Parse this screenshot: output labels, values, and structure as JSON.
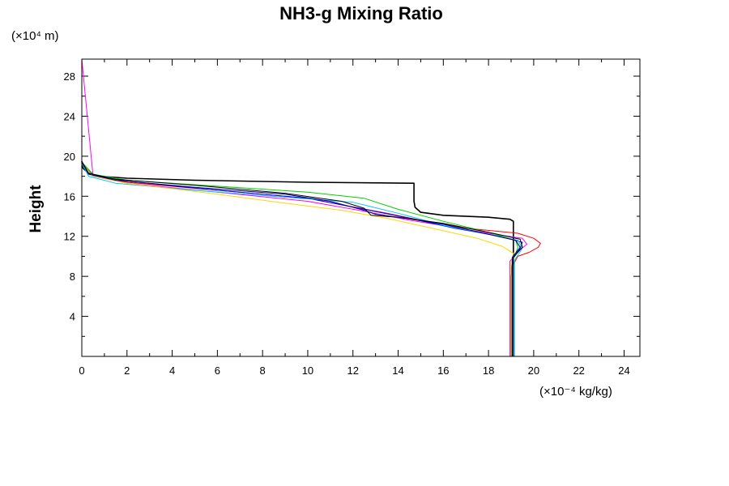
{
  "chart_data": {
    "type": "line",
    "title": "NH3-g Mixing Ratio",
    "ylabel": "Height",
    "y_units": "(×10⁴ m)",
    "x_units": "(×10⁻⁴ kg/kg)",
    "xlim": [
      0,
      24.7
    ],
    "ylim": [
      0,
      29.7
    ],
    "x_ticks": [
      0,
      2,
      4,
      6,
      8,
      10,
      12,
      14,
      16,
      18,
      20,
      22,
      24
    ],
    "y_ticks": [
      4,
      8,
      12,
      16,
      20,
      24,
      28
    ],
    "x_tick_labels": [
      "0",
      "2",
      "4",
      "6",
      "8",
      "10",
      "12",
      "14",
      "16",
      "18",
      "20",
      "22",
      "24"
    ],
    "y_tick_labels": [
      "4",
      "8",
      "12",
      "16",
      "20",
      "24",
      "28"
    ],
    "grid": false,
    "series": [
      {
        "name": "profile-black-bold",
        "color": "#000000",
        "width": 1.6,
        "x": [
          19.0,
          19.0,
          19.1,
          19.1,
          19.1,
          18.95,
          18.0,
          16.0,
          15.0,
          14.75,
          14.7,
          14.7,
          10.0,
          5.0,
          2.0,
          0.8,
          0.3,
          0.05,
          0.0
        ],
        "y": [
          0.0,
          8.0,
          10.0,
          11.5,
          13.5,
          13.7,
          13.9,
          14.1,
          14.4,
          14.9,
          15.5,
          17.3,
          17.4,
          17.6,
          17.8,
          18.0,
          18.3,
          18.8,
          19.5
        ]
      },
      {
        "name": "profile-red",
        "color": "#ff0000",
        "width": 1.0,
        "x": [
          19.05,
          19.05,
          19.3,
          19.8,
          20.2,
          20.3,
          20.0,
          19.3,
          17.0,
          15.0,
          13.5,
          10.0,
          6.0,
          2.0,
          0.5,
          0.0
        ],
        "y": [
          0.0,
          9.0,
          10.0,
          10.4,
          10.9,
          11.3,
          11.8,
          12.3,
          12.8,
          13.6,
          14.3,
          15.8,
          16.6,
          17.4,
          18.0,
          19.3
        ]
      },
      {
        "name": "profile-magenta",
        "color": "#ff00ff",
        "width": 1.0,
        "x": [
          18.95,
          18.95,
          19.3,
          19.7,
          19.5,
          18.0,
          16.5,
          14.5,
          12.5,
          10.0,
          6.0,
          2.0,
          0.5,
          0.0
        ],
        "y": [
          0.0,
          9.5,
          10.5,
          11.2,
          11.8,
          12.3,
          12.9,
          13.6,
          14.5,
          15.5,
          16.4,
          17.3,
          18.0,
          29.7
        ]
      },
      {
        "name": "profile-blue",
        "color": "#0000ff",
        "width": 1.0,
        "x": [
          19.1,
          19.1,
          19.4,
          19.5,
          18.5,
          16.5,
          14.5,
          12.5,
          10.0,
          6.0,
          2.0,
          0.5,
          0.0
        ],
        "y": [
          0.0,
          9.8,
          10.8,
          11.4,
          12.0,
          12.8,
          13.8,
          14.7,
          15.8,
          16.6,
          17.5,
          18.1,
          19.4
        ]
      },
      {
        "name": "profile-cyan",
        "color": "#00c8ff",
        "width": 1.0,
        "x": [
          19.15,
          19.15,
          19.5,
          19.3,
          18.0,
          16.0,
          14.0,
          12.0,
          9.0,
          5.0,
          1.5,
          0.3,
          0.0
        ],
        "y": [
          0.0,
          9.6,
          10.8,
          11.6,
          12.2,
          13.1,
          14.3,
          15.4,
          15.9,
          16.6,
          17.3,
          18.0,
          19.3
        ]
      },
      {
        "name": "profile-green",
        "color": "#00d000",
        "width": 1.0,
        "x": [
          19.1,
          19.1,
          19.3,
          19.2,
          18.0,
          16.0,
          14.0,
          12.5,
          10.0,
          6.0,
          2.0,
          0.5,
          0.0
        ],
        "y": [
          0.0,
          9.7,
          10.9,
          11.6,
          12.4,
          13.5,
          14.7,
          15.8,
          16.4,
          17.0,
          17.6,
          18.2,
          19.4
        ]
      },
      {
        "name": "profile-yellow",
        "color": "#ffd700",
        "width": 1.0,
        "x": [
          19.0,
          19.0,
          19.1,
          18.6,
          17.5,
          15.5,
          13.5,
          11.5,
          9.0,
          6.0,
          2.0,
          0.5,
          0.0
        ],
        "y": [
          0.0,
          9.3,
          10.3,
          11.0,
          11.8,
          12.8,
          13.8,
          14.6,
          15.3,
          16.2,
          17.3,
          18.0,
          19.3
        ]
      },
      {
        "name": "profile-navy",
        "color": "#000080",
        "width": 1.0,
        "x": [
          19.05,
          19.05,
          19.4,
          19.2,
          18.0,
          16.0,
          14.0,
          13.0,
          12.5,
          11.0,
          9.0,
          5.0,
          1.5,
          0.3,
          0.0
        ],
        "y": [
          0.0,
          9.9,
          10.9,
          11.6,
          12.2,
          13.2,
          13.9,
          14.2,
          14.6,
          15.5,
          16.2,
          16.9,
          17.6,
          18.2,
          19.4
        ]
      },
      {
        "name": "profile-black-thin",
        "color": "#000000",
        "width": 1.0,
        "x": [
          19.1,
          19.1,
          19.5,
          19.4,
          18.2,
          16.0,
          14.0,
          12.8,
          12.5,
          11.5,
          9.0,
          5.0,
          1.5,
          0.3,
          0.0
        ],
        "y": [
          0.0,
          9.9,
          10.9,
          11.7,
          12.3,
          13.3,
          13.9,
          14.1,
          14.8,
          15.5,
          16.3,
          17.1,
          17.7,
          18.3,
          19.5
        ]
      }
    ]
  }
}
